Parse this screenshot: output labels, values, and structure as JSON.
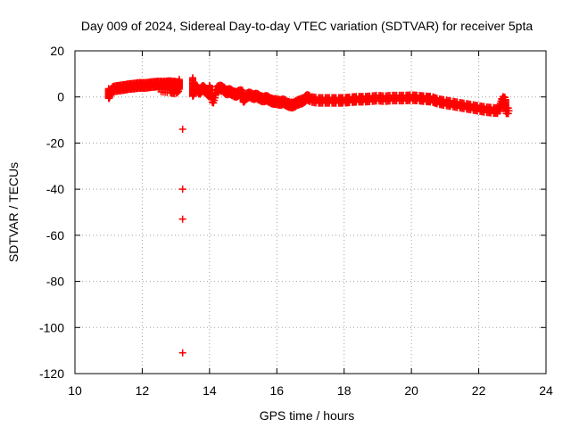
{
  "chart_data": {
    "type": "scatter",
    "title": "Day 009 of 2024, Sidereal Day-to-day VTEC variation (SDTVAR) for receiver 5pta",
    "xlabel": "GPS time / hours",
    "ylabel": "SDTVAR / TECUs",
    "xlim": [
      10,
      24
    ],
    "ylim": [
      -120,
      20
    ],
    "xticks": [
      10,
      12,
      14,
      16,
      18,
      20,
      22,
      24
    ],
    "yticks": [
      -120,
      -100,
      -80,
      -60,
      -40,
      -20,
      0,
      20
    ],
    "grid": true,
    "marker": "plus",
    "color": "#ff0000",
    "series": [
      {
        "name": "main-band",
        "points": [
          [
            11.0,
            3.0
          ],
          [
            11.0,
            0.0
          ],
          [
            11.1,
            3.2
          ],
          [
            11.2,
            3.6
          ],
          [
            11.3,
            3.8
          ],
          [
            11.4,
            4.0
          ],
          [
            11.5,
            4.2
          ],
          [
            11.6,
            4.5
          ],
          [
            11.7,
            4.6
          ],
          [
            11.8,
            4.8
          ],
          [
            11.9,
            5.0
          ],
          [
            12.0,
            5.0
          ],
          [
            12.1,
            5.0
          ],
          [
            12.2,
            5.2
          ],
          [
            12.3,
            5.4
          ],
          [
            12.4,
            5.5
          ],
          [
            12.5,
            5.6
          ],
          [
            12.6,
            5.5
          ],
          [
            12.7,
            5.6
          ],
          [
            12.8,
            5.8
          ],
          [
            12.9,
            5.6
          ],
          [
            13.0,
            5.5
          ],
          [
            13.1,
            5.2
          ],
          [
            12.5,
            3.5
          ],
          [
            12.8,
            3.0
          ],
          [
            13.0,
            2.5
          ],
          [
            13.1,
            4.0
          ],
          [
            13.1,
            7.0
          ],
          [
            13.5,
            8.0
          ],
          [
            13.5,
            3.5
          ],
          [
            13.5,
            1.0
          ],
          [
            13.6,
            4.5
          ],
          [
            13.7,
            2.0
          ],
          [
            13.8,
            4.0
          ],
          [
            13.9,
            2.5
          ],
          [
            14.0,
            1.0
          ],
          [
            14.0,
            4.5
          ],
          [
            14.1,
            -2.5
          ],
          [
            14.2,
            3.0
          ],
          [
            14.3,
            4.0
          ],
          [
            14.4,
            3.5
          ],
          [
            14.5,
            2.0
          ],
          [
            14.6,
            2.5
          ],
          [
            14.7,
            1.5
          ],
          [
            14.8,
            1.0
          ],
          [
            14.9,
            2.0
          ],
          [
            15.0,
            1.5
          ],
          [
            15.0,
            -1.5
          ],
          [
            15.1,
            0.5
          ],
          [
            15.2,
            1.0
          ],
          [
            15.3,
            0.0
          ],
          [
            15.4,
            0.5
          ],
          [
            15.5,
            -0.5
          ],
          [
            15.6,
            -1.0
          ],
          [
            15.7,
            -0.5
          ],
          [
            15.8,
            -1.5
          ],
          [
            15.9,
            -2.0
          ],
          [
            16.0,
            -2.0
          ],
          [
            16.1,
            -2.5
          ],
          [
            16.2,
            -2.0
          ],
          [
            16.3,
            -3.0
          ],
          [
            16.4,
            -3.5
          ],
          [
            16.5,
            -3.5
          ],
          [
            16.6,
            -2.5
          ],
          [
            16.7,
            -2.0
          ],
          [
            16.8,
            -1.5
          ],
          [
            16.9,
            0.0
          ],
          [
            17.0,
            -1.0
          ],
          [
            17.2,
            -1.5
          ],
          [
            17.4,
            -1.5
          ],
          [
            17.6,
            -1.5
          ],
          [
            17.8,
            -1.5
          ],
          [
            18.0,
            -1.5
          ],
          [
            18.2,
            -1.2
          ],
          [
            18.4,
            -1.0
          ],
          [
            18.6,
            -1.0
          ],
          [
            18.8,
            -0.8
          ],
          [
            19.0,
            -0.5
          ],
          [
            19.2,
            -0.8
          ],
          [
            19.4,
            -0.5
          ],
          [
            19.6,
            -0.5
          ],
          [
            19.8,
            -0.5
          ],
          [
            20.0,
            -0.3
          ],
          [
            20.2,
            -0.5
          ],
          [
            20.4,
            -0.8
          ],
          [
            20.6,
            -1.0
          ],
          [
            20.8,
            -2.0
          ],
          [
            21.0,
            -2.5
          ],
          [
            21.2,
            -3.0
          ],
          [
            21.4,
            -3.5
          ],
          [
            21.6,
            -4.0
          ],
          [
            21.8,
            -4.5
          ],
          [
            22.0,
            -5.0
          ],
          [
            22.2,
            -5.5
          ],
          [
            22.4,
            -5.8
          ],
          [
            22.6,
            -6.0
          ],
          [
            22.7,
            -1.0
          ],
          [
            22.8,
            -1.5
          ],
          [
            22.8,
            -6.0
          ],
          [
            22.9,
            -6.0
          ]
        ]
      },
      {
        "name": "outliers",
        "points": [
          [
            13.2,
            -14
          ],
          [
            13.2,
            -40
          ],
          [
            13.2,
            -53
          ],
          [
            13.2,
            -111
          ]
        ]
      }
    ]
  }
}
